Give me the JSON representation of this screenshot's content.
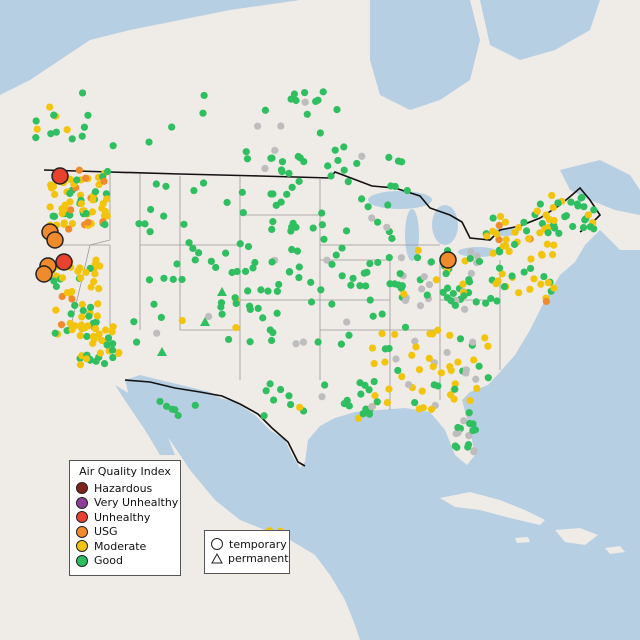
{
  "map": {
    "colors": {
      "ocean": "#b7cfe3",
      "land": "#efebe6",
      "mountain": "#e6dfd6",
      "border": "#111111",
      "state_line": "#9a9a9a"
    }
  },
  "legend": {
    "title": "Air Quality Index",
    "items": [
      {
        "label": "Hazardous",
        "color": "#7e2418"
      },
      {
        "label": "Very Unhealthy",
        "color": "#8f3f97"
      },
      {
        "label": "Unhealthy",
        "color": "#e8412f"
      },
      {
        "label": "USG",
        "color": "#ef8b2c"
      },
      {
        "label": "Moderate",
        "color": "#f2c40c"
      },
      {
        "label": "Good",
        "color": "#2fbf60"
      }
    ]
  },
  "type_legend": {
    "items": [
      {
        "label": "temporary",
        "shape": "circle"
      },
      {
        "label": "permanent",
        "shape": "triangle"
      }
    ]
  },
  "colors": {
    "good": "#2fbf60",
    "moderate": "#f2c40c",
    "usg": "#ef8b2c",
    "unhealthy": "#e8412f",
    "nodata": "#bdbdbd"
  }
}
